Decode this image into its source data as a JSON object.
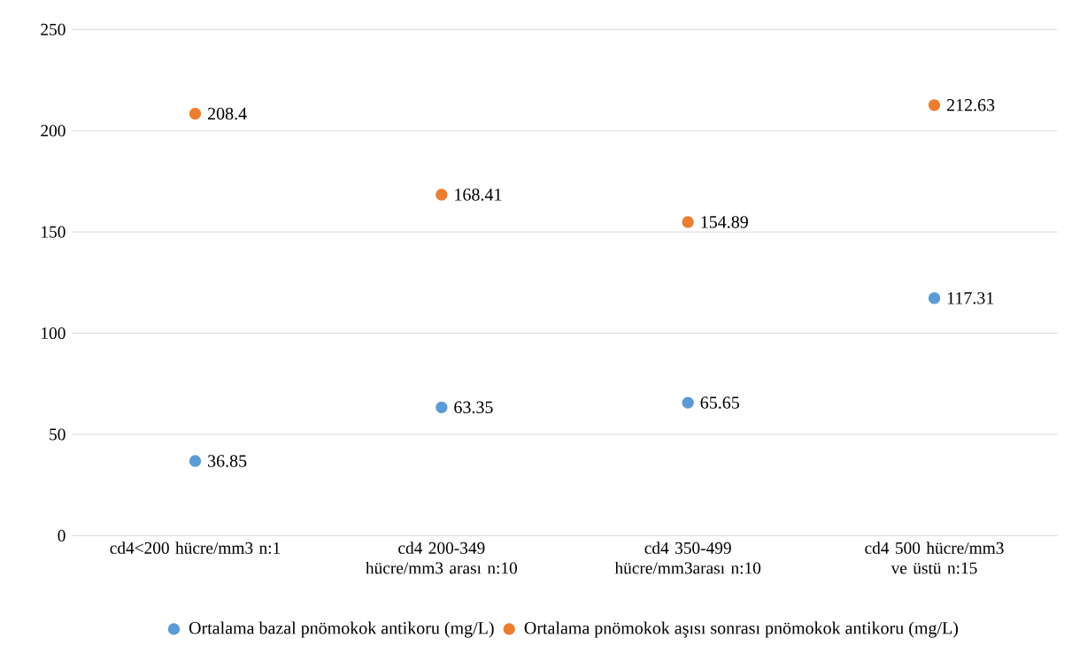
{
  "chart_data": {
    "type": "scatter",
    "categories": [
      "cd4<200 hücre/mm3 n:1",
      "cd4 200-349 hücre/mm3 arası n:10",
      "cd4 350-499 hücre/mm3arası n:10",
      "cd4 500 hücre/mm3 ve üstü n:15"
    ],
    "series": [
      {
        "name": "Ortalama bazal pnömokok antikoru (mg/L)",
        "color": "#5b9bd5",
        "values": [
          36.85,
          63.35,
          65.65,
          117.31
        ]
      },
      {
        "name": "Ortalama pnömokok aşısı sonrası pnömokok antikoru (mg/L)",
        "color": "#ed7d31",
        "values": [
          208.4,
          168.41,
          154.89,
          212.63
        ]
      }
    ],
    "ylim": [
      0,
      250
    ],
    "yticks": [
      0,
      50,
      100,
      150,
      200,
      250
    ],
    "grid": "y",
    "legend": "bottom",
    "marker": "circle",
    "data_labels": true
  }
}
